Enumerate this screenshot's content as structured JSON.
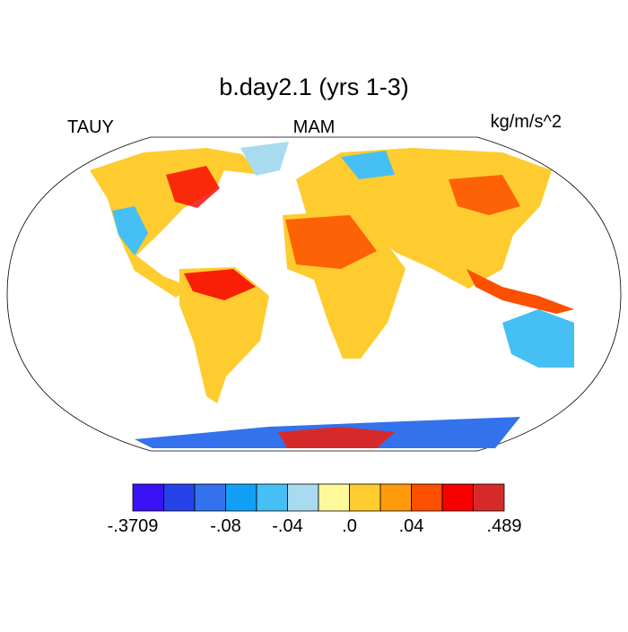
{
  "title": "b.day2.1 (yrs 1-3)",
  "left_string": "TAUY",
  "center_string": "MAM",
  "right_string": "kg/m/s^2",
  "colorbar": {
    "colors": [
      "#3b12f5",
      "#2541e8",
      "#3372ec",
      "#12a0f7",
      "#45bff4",
      "#a8dbf0",
      "#fff89a",
      "#fecc2f",
      "#fe9a0c",
      "#fd4f00",
      "#f80000",
      "#d62a2a"
    ],
    "labels": [
      "-.3709",
      "-.08",
      "-.04",
      ".0",
      ".04",
      ".489"
    ]
  }
}
